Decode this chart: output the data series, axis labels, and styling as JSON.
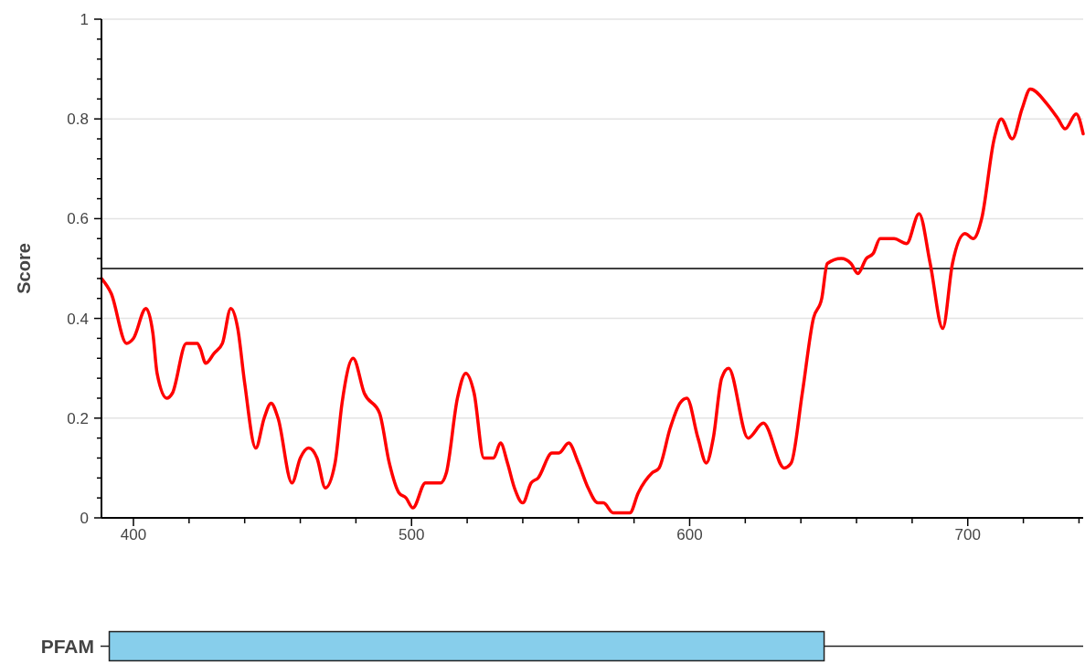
{
  "chart_data": [
    {
      "type": "line",
      "ylabel": "Score",
      "xlim": [
        388.5,
        741.5
      ],
      "xticks": [
        {
          "value": 400,
          "label": "400"
        },
        {
          "value": 420,
          "label": null
        },
        {
          "value": 440,
          "label": null
        },
        {
          "value": 460,
          "label": null
        },
        {
          "value": 480,
          "label": null
        },
        {
          "value": 500,
          "label": "500"
        },
        {
          "value": 520,
          "label": null
        },
        {
          "value": 540,
          "label": null
        },
        {
          "value": 560,
          "label": null
        },
        {
          "value": 580,
          "label": null
        },
        {
          "value": 600,
          "label": "600"
        },
        {
          "value": 620,
          "label": null
        },
        {
          "value": 640,
          "label": null
        },
        {
          "value": 660,
          "label": null
        },
        {
          "value": 680,
          "label": null
        },
        {
          "value": 700,
          "label": "700"
        },
        {
          "value": 720,
          "label": null
        },
        {
          "value": 740,
          "label": null
        }
      ],
      "ylim": [
        0,
        1
      ],
      "yticks": [
        0,
        {
          "value": 0.04,
          "label": null
        },
        {
          "value": 0.08,
          "label": null
        },
        {
          "value": 0.12,
          "label": null
        },
        {
          "value": 0.16,
          "label": null
        },
        0.2,
        {
          "value": 0.24,
          "label": null
        },
        {
          "value": 0.28,
          "label": null
        },
        {
          "value": 0.32,
          "label": null
        },
        {
          "value": 0.36,
          "label": null
        },
        0.4,
        {
          "value": 0.44,
          "label": null
        },
        {
          "value": 0.48,
          "label": null
        },
        {
          "value": 0.52,
          "label": null
        },
        {
          "value": 0.56,
          "label": null
        },
        0.6,
        {
          "value": 0.64,
          "label": null
        },
        {
          "value": 0.68,
          "label": null
        },
        {
          "value": 0.72,
          "label": null
        },
        {
          "value": 0.76,
          "label": null
        },
        0.8,
        {
          "value": 0.84,
          "label": null
        },
        {
          "value": 0.88,
          "label": null
        },
        {
          "value": 0.92,
          "label": null
        },
        {
          "value": 0.96,
          "label": null
        },
        1
      ],
      "grid": "y",
      "marker": "none",
      "line_style": "solid",
      "ref_lines": [
        {
          "axis": "y",
          "value": 0.5,
          "color": "#000000"
        }
      ],
      "series": [
        {
          "color": "#ff0000",
          "x": [
            388.5,
            392,
            397.5,
            400,
            404.5,
            407,
            408.5,
            412,
            414,
            419,
            423,
            424,
            426,
            429,
            432,
            435,
            437.5,
            440,
            444,
            447,
            449.5,
            452,
            457,
            460,
            463,
            466,
            469,
            472.5,
            475,
            479,
            483,
            488.5,
            492,
            495.5,
            498,
            500.5,
            505,
            510.5,
            512.5,
            516.5,
            519.5,
            522.5,
            526,
            529.5,
            532,
            534.5,
            537,
            540,
            543,
            545.5,
            550.5,
            553,
            556.5,
            560,
            563.5,
            567,
            569,
            572.5,
            574.5,
            578.5,
            581.5,
            586.5,
            589,
            593,
            596.5,
            599,
            603,
            606,
            608.5,
            611.5,
            614,
            621,
            626.5,
            634,
            636.5,
            640.5,
            644.5,
            647.5,
            649.5,
            654.5,
            658,
            660.5,
            663.5,
            666,
            668.5,
            673.5,
            678,
            682.5,
            686.5,
            691,
            694.5,
            699,
            702,
            705,
            709.5,
            712,
            716,
            719.5,
            722.5,
            728.5,
            732.5,
            735,
            739,
            741.5
          ],
          "values": [
            0.48,
            0.45,
            0.35,
            0.36,
            0.42,
            0.37,
            0.29,
            0.24,
            0.25,
            0.35,
            0.35,
            0.34,
            0.31,
            0.33,
            0.35,
            0.42,
            0.38,
            0.27,
            0.14,
            0.2,
            0.23,
            0.2,
            0.07,
            0.12,
            0.14,
            0.12,
            0.06,
            0.11,
            0.23,
            0.32,
            0.25,
            0.21,
            0.11,
            0.05,
            0.04,
            0.02,
            0.07,
            0.07,
            0.09,
            0.24,
            0.29,
            0.25,
            0.12,
            0.12,
            0.15,
            0.11,
            0.06,
            0.03,
            0.07,
            0.08,
            0.13,
            0.13,
            0.15,
            0.11,
            0.06,
            0.03,
            0.03,
            0.01,
            0.01,
            0.01,
            0.05,
            0.09,
            0.1,
            0.18,
            0.23,
            0.24,
            0.16,
            0.11,
            0.16,
            0.28,
            0.3,
            0.16,
            0.19,
            0.1,
            0.11,
            0.25,
            0.4,
            0.44,
            0.51,
            0.52,
            0.51,
            0.49,
            0.52,
            0.53,
            0.56,
            0.56,
            0.55,
            0.61,
            0.51,
            0.38,
            0.51,
            0.57,
            0.56,
            0.6,
            0.76,
            0.8,
            0.76,
            0.82,
            0.86,
            0.83,
            0.8,
            0.78,
            0.81,
            0.77
          ]
        }
      ]
    },
    {
      "type": "bar",
      "orientation": "horizontal",
      "categories": [
        "PFAM"
      ],
      "base": [
        390
      ],
      "values": [
        258
      ],
      "colors": [
        "#87ceeb"
      ],
      "xlim": [
        388.5,
        741.5
      ],
      "tick_labels": "y"
    }
  ]
}
